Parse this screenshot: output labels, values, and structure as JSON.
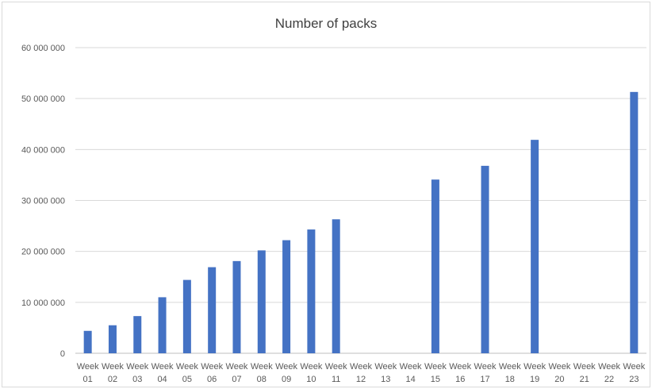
{
  "chart_data": {
    "type": "bar",
    "title": "Number of packs",
    "xlabel": "",
    "ylabel": "",
    "ylim": [
      0,
      60000000
    ],
    "yticks": [
      0,
      10000000,
      20000000,
      30000000,
      40000000,
      50000000,
      60000000
    ],
    "ytick_labels": [
      "0",
      "10 000 000",
      "20 000 000",
      "30 000 000",
      "40 000 000",
      "50 000 000",
      "60 000 000"
    ],
    "grid": true,
    "legend": "none",
    "bar_color": "#4472C4",
    "categories": [
      [
        "Week",
        "01"
      ],
      [
        "Week",
        "02"
      ],
      [
        "Week",
        "03"
      ],
      [
        "Week",
        "04"
      ],
      [
        "Week",
        "05"
      ],
      [
        "Week",
        "06"
      ],
      [
        "Week",
        "07"
      ],
      [
        "Week",
        "08"
      ],
      [
        "Week",
        "09"
      ],
      [
        "Week",
        "10"
      ],
      [
        "Week",
        "11"
      ],
      [
        "Week",
        "12"
      ],
      [
        "Week",
        "13"
      ],
      [
        "Week",
        "14"
      ],
      [
        "Week",
        "15"
      ],
      [
        "Week",
        "16"
      ],
      [
        "Week",
        "17"
      ],
      [
        "Week",
        "18"
      ],
      [
        "Week",
        "19"
      ],
      [
        "Week",
        "20"
      ],
      [
        "Week",
        "21"
      ],
      [
        "Week",
        "22"
      ],
      [
        "Week",
        "23"
      ]
    ],
    "values": [
      4400000,
      5500000,
      7300000,
      11000000,
      14400000,
      16900000,
      18100000,
      20200000,
      22200000,
      24300000,
      26300000,
      null,
      null,
      null,
      34100000,
      null,
      36800000,
      null,
      41900000,
      null,
      null,
      null,
      51300000
    ]
  }
}
